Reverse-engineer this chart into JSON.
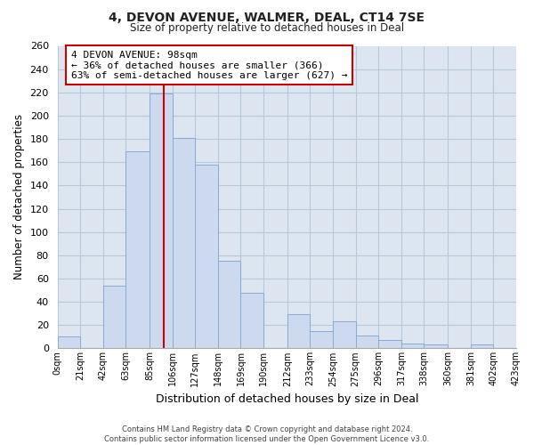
{
  "title": "4, DEVON AVENUE, WALMER, DEAL, CT14 7SE",
  "subtitle": "Size of property relative to detached houses in Deal",
  "xlabel": "Distribution of detached houses by size in Deal",
  "ylabel": "Number of detached properties",
  "bar_color": "#ccd9ee",
  "bar_edge_color": "#8aaad4",
  "plot_bg_color": "#dde6f0",
  "fig_bg_color": "#ffffff",
  "grid_color": "#b8c8dc",
  "property_line_x": 98,
  "property_line_color": "#cc0000",
  "annotation_text": "4 DEVON AVENUE: 98sqm\n← 36% of detached houses are smaller (366)\n63% of semi-detached houses are larger (627) →",
  "annotation_box_color": "#ffffff",
  "annotation_box_edge": "#cc0000",
  "footer_text": "Contains HM Land Registry data © Crown copyright and database right 2024.\nContains public sector information licensed under the Open Government Licence v3.0.",
  "bin_edges": [
    0,
    21,
    42,
    63,
    85,
    106,
    127,
    148,
    169,
    190,
    212,
    233,
    254,
    275,
    296,
    317,
    338,
    360,
    381,
    402,
    423
  ],
  "bin_labels": [
    "0sqm",
    "21sqm",
    "42sqm",
    "63sqm",
    "85sqm",
    "106sqm",
    "127sqm",
    "148sqm",
    "169sqm",
    "190sqm",
    "212sqm",
    "233sqm",
    "254sqm",
    "275sqm",
    "296sqm",
    "317sqm",
    "338sqm",
    "360sqm",
    "381sqm",
    "402sqm",
    "423sqm"
  ],
  "counts": [
    10,
    0,
    54,
    169,
    219,
    181,
    158,
    75,
    48,
    0,
    29,
    15,
    23,
    11,
    7,
    4,
    3,
    0,
    3,
    0
  ],
  "ylim": [
    0,
    260
  ],
  "yticks": [
    0,
    20,
    40,
    60,
    80,
    100,
    120,
    140,
    160,
    180,
    200,
    220,
    240,
    260
  ]
}
